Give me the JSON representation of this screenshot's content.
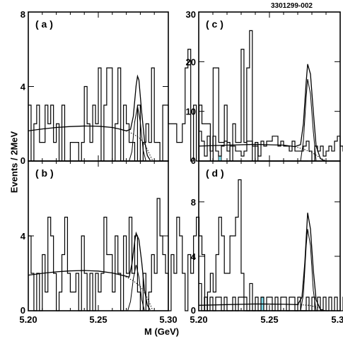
{
  "figure_id": "3301299-002",
  "ylabel": "Events / 2MeV",
  "xlabel": "M (GeV)",
  "colors": {
    "signal_fill": "#80e0f0",
    "line": "#000000",
    "background": "#ffffff"
  },
  "chart_data": [
    {
      "type": "histogram",
      "panel_label": "( a )",
      "xlim": [
        5.2,
        5.3
      ],
      "ylim": [
        0,
        8
      ],
      "y_ticks": [
        "0",
        "4",
        "8"
      ],
      "x_ticks": [],
      "bin_edges_start": 5.2,
      "bin_width": 0.002,
      "counts": [
        3,
        0,
        2,
        3,
        1,
        1,
        3,
        2,
        3,
        1,
        2,
        0,
        3,
        0,
        0,
        1,
        1,
        1,
        0,
        1,
        4,
        2,
        1,
        3,
        2,
        5,
        0,
        3,
        5,
        5,
        0,
        2,
        5,
        0,
        3,
        2,
        1,
        1,
        0,
        3,
        0,
        1,
        2,
        1,
        5,
        1,
        1,
        0,
        3,
        3,
        2,
        2,
        2,
        1,
        1,
        2,
        5,
        6,
        0,
        3,
        0,
        3,
        2,
        2,
        2,
        0,
        5,
        5,
        1,
        1,
        3,
        1,
        0,
        2,
        1,
        1,
        6,
        1,
        5,
        7,
        0,
        1,
        0,
        0,
        0,
        0,
        0,
        0,
        0,
        0,
        0,
        0,
        0,
        0,
        0,
        0,
        0,
        0,
        0,
        0
      ],
      "shaded_counts": [],
      "fit_background_total": [
        [
          5.2,
          1.62
        ],
        [
          5.21,
          1.72
        ],
        [
          5.22,
          1.8
        ],
        [
          5.23,
          1.85
        ],
        [
          5.24,
          1.88
        ],
        [
          5.25,
          1.87
        ],
        [
          5.26,
          1.8
        ],
        [
          5.265,
          1.72
        ],
        [
          5.27,
          1.62
        ],
        [
          5.273,
          1.7
        ],
        [
          5.275,
          2.4
        ],
        [
          5.277,
          4.05
        ],
        [
          5.278,
          4.55
        ],
        [
          5.279,
          4.35
        ],
        [
          5.281,
          2.6
        ],
        [
          5.283,
          1.1
        ],
        [
          5.285,
          0.3
        ],
        [
          5.287,
          0.05
        ]
      ],
      "fit_background_dotted": [
        [
          5.27,
          1.62
        ],
        [
          5.275,
          1.45
        ],
        [
          5.28,
          1.2
        ],
        [
          5.284,
          0.8
        ],
        [
          5.287,
          0.3
        ],
        [
          5.289,
          0.0
        ]
      ],
      "fit_signal": [
        [
          5.272,
          0.0
        ],
        [
          5.274,
          0.5
        ],
        [
          5.276,
          2.1
        ],
        [
          5.278,
          2.95
        ],
        [
          5.28,
          2.1
        ],
        [
          5.282,
          0.6
        ],
        [
          5.284,
          0.0
        ]
      ]
    },
    {
      "type": "histogram",
      "panel_label": "( b )",
      "xlim": [
        5.2,
        5.3
      ],
      "ylim": [
        0,
        8
      ],
      "y_ticks": [
        "0",
        "4"
      ],
      "x_ticks": [
        "5.20",
        "5.25",
        "5.30"
      ],
      "bin_edges_start": 5.2,
      "bin_width": 0.002,
      "counts": [
        4,
        2,
        0,
        2,
        0,
        3,
        1,
        5,
        4,
        2,
        0,
        1,
        3,
        5,
        2,
        1,
        1,
        2,
        0,
        4,
        2,
        0,
        2,
        0,
        2,
        1,
        2,
        5,
        3,
        3,
        1,
        4,
        2,
        0,
        4,
        2,
        5,
        2,
        4,
        1,
        0,
        2,
        0,
        1,
        3,
        2,
        6,
        4,
        3,
        2,
        0,
        3,
        2,
        5,
        4,
        2,
        0,
        3,
        2,
        4,
        5,
        4,
        3,
        0,
        1,
        2,
        1,
        3,
        5,
        4,
        2,
        2,
        4,
        4,
        5,
        7,
        2,
        0,
        0,
        0,
        0,
        0,
        0,
        0,
        0,
        0,
        0,
        0,
        0,
        0,
        0,
        0,
        0,
        0,
        0,
        0,
        0,
        0,
        0,
        0
      ],
      "shaded_counts": [],
      "fit_background_total": [
        [
          5.2,
          1.9
        ],
        [
          5.21,
          2.0
        ],
        [
          5.22,
          2.08
        ],
        [
          5.23,
          2.13
        ],
        [
          5.24,
          2.15
        ],
        [
          5.25,
          2.12
        ],
        [
          5.26,
          2.02
        ],
        [
          5.268,
          1.88
        ],
        [
          5.272,
          1.8
        ],
        [
          5.274,
          2.5
        ],
        [
          5.276,
          3.7
        ],
        [
          5.277,
          4.15
        ],
        [
          5.279,
          3.8
        ],
        [
          5.281,
          2.6
        ],
        [
          5.283,
          1.1
        ],
        [
          5.285,
          0.3
        ],
        [
          5.287,
          0.05
        ]
      ],
      "fit_background_dotted": [
        [
          5.268,
          1.88
        ],
        [
          5.275,
          1.6
        ],
        [
          5.28,
          1.3
        ],
        [
          5.284,
          0.85
        ],
        [
          5.287,
          0.35
        ],
        [
          5.289,
          0.0
        ]
      ],
      "fit_signal": [
        [
          5.271,
          0.0
        ],
        [
          5.273,
          0.5
        ],
        [
          5.275,
          1.7
        ],
        [
          5.277,
          2.45
        ],
        [
          5.279,
          1.8
        ],
        [
          5.281,
          0.6
        ],
        [
          5.283,
          0.0
        ]
      ]
    },
    {
      "type": "histogram",
      "panel_label": "( c )",
      "xlim": [
        5.2,
        5.3
      ],
      "ylim": [
        0,
        30
      ],
      "y_ticks": [
        "0",
        "10",
        "20",
        "30"
      ],
      "x_ticks": [],
      "bin_edges_start": 5.2,
      "bin_width": 0.002,
      "counts": [
        6,
        4,
        1,
        5,
        2,
        5,
        2,
        1,
        3,
        4,
        2,
        3,
        3,
        2,
        2,
        1,
        2,
        4,
        4,
        3,
        3,
        1,
        4,
        3,
        4,
        4,
        5,
        5,
        3,
        4,
        3,
        3,
        2,
        4,
        2,
        2,
        2,
        3,
        4,
        2,
        0,
        3,
        2,
        3,
        1,
        2,
        3,
        2,
        4,
        5,
        3,
        2,
        2,
        3,
        1,
        2,
        0,
        1,
        2,
        3,
        2,
        2,
        4,
        3,
        2,
        1,
        2,
        4,
        3,
        1,
        2,
        3,
        4,
        2,
        2,
        4,
        26,
        23,
        12,
        8,
        3,
        2,
        0,
        0,
        0,
        0,
        0,
        0,
        0,
        0,
        0,
        0,
        0,
        0,
        0,
        0,
        0,
        0,
        0,
        0
      ],
      "shaded_counts": [
        0,
        0,
        0,
        0,
        0,
        0,
        0,
        1,
        0,
        0,
        0,
        0,
        0,
        0,
        0,
        0,
        0,
        0,
        0,
        0,
        0,
        0,
        0,
        0,
        0,
        0,
        0,
        0,
        0,
        0,
        0,
        0,
        0,
        0,
        0,
        0,
        0,
        0,
        0,
        0,
        0,
        0,
        0,
        0,
        0,
        0,
        0,
        0,
        0,
        0,
        0,
        0,
        0,
        0,
        0,
        0,
        0,
        0,
        0,
        0,
        0,
        0,
        0,
        0,
        0,
        0,
        0,
        1,
        0,
        0,
        0,
        1,
        1,
        1,
        2,
        9,
        11,
        2,
        0,
        0,
        0,
        0,
        0,
        0,
        0,
        0,
        0,
        0,
        0,
        0,
        0,
        0,
        0,
        0,
        0,
        0,
        0,
        0,
        0,
        0
      ],
      "fit_background_total": [
        [
          5.2,
          3.0
        ],
        [
          5.22,
          3.2
        ],
        [
          5.24,
          3.35
        ],
        [
          5.26,
          3.2
        ],
        [
          5.268,
          2.9
        ],
        [
          5.272,
          3.3
        ],
        [
          5.274,
          7.5
        ],
        [
          5.276,
          16.0
        ],
        [
          5.277,
          19.5
        ],
        [
          5.279,
          17.5
        ],
        [
          5.281,
          10.0
        ],
        [
          5.283,
          3.0
        ],
        [
          5.286,
          0.5
        ],
        [
          5.289,
          0.0
        ]
      ],
      "fit_background_dotted": [
        [
          5.268,
          2.9
        ],
        [
          5.275,
          2.3
        ],
        [
          5.28,
          1.7
        ],
        [
          5.284,
          1.0
        ],
        [
          5.288,
          0.3
        ],
        [
          5.29,
          0.0
        ]
      ],
      "fit_signal": [
        [
          5.272,
          0.0
        ],
        [
          5.274,
          4.0
        ],
        [
          5.276,
          13.0
        ],
        [
          5.277,
          16.5
        ],
        [
          5.279,
          13.5
        ],
        [
          5.281,
          6.0
        ],
        [
          5.283,
          0.0
        ]
      ]
    },
    {
      "type": "histogram",
      "panel_label": "( d )",
      "xlim": [
        5.2,
        5.3
      ],
      "ylim": [
        0,
        11
      ],
      "y_ticks": [
        "0",
        "4",
        "8"
      ],
      "x_ticks": [
        "5.20",
        "5.25",
        "5.30"
      ],
      "bin_edges_start": 5.2,
      "bin_width": 0.002,
      "counts": [
        2,
        0,
        1,
        0,
        1,
        0,
        1,
        1,
        0,
        1,
        0,
        0,
        1,
        0,
        1,
        1,
        1,
        0,
        2,
        0,
        1,
        0,
        1,
        0,
        1,
        1,
        0,
        1,
        0,
        1,
        1,
        0,
        1,
        1,
        0,
        1,
        0,
        0,
        1,
        0,
        1,
        0,
        1,
        0,
        1,
        0,
        1,
        0,
        1,
        0,
        0,
        1,
        0,
        0,
        0,
        1,
        0,
        0,
        0,
        0,
        0,
        1,
        1,
        0,
        0,
        0,
        1,
        0,
        1,
        1,
        0,
        1,
        2,
        1,
        1,
        0,
        10,
        8,
        1,
        0,
        0,
        0,
        0,
        0,
        0,
        0,
        0,
        0,
        0,
        0,
        0,
        0,
        0,
        0,
        0,
        0,
        0,
        0,
        0,
        0
      ],
      "shaded_counts": [
        0,
        0,
        0,
        0,
        0,
        0,
        0,
        0,
        0,
        0,
        0,
        0,
        0,
        0,
        0,
        0,
        0,
        0,
        0,
        0,
        0,
        0,
        1,
        0,
        0,
        0,
        0,
        0,
        0,
        0,
        0,
        0,
        0,
        0,
        0,
        0,
        0,
        0,
        0,
        0,
        0,
        0,
        0,
        0,
        0,
        0,
        0,
        0,
        0,
        0,
        0,
        0,
        0,
        0,
        0,
        0,
        0,
        0,
        0,
        0,
        0,
        0,
        0,
        0,
        0,
        0,
        0,
        0,
        0,
        0,
        0,
        0,
        1,
        1,
        0,
        0,
        4,
        2,
        0,
        0,
        0,
        0,
        0,
        0,
        0,
        0,
        0,
        0,
        0,
        0,
        0,
        0,
        0,
        0,
        0,
        0,
        0,
        0,
        0,
        0
      ],
      "fit_background_total": [
        [
          5.2,
          0.4
        ],
        [
          5.22,
          0.45
        ],
        [
          5.24,
          0.5
        ],
        [
          5.26,
          0.48
        ],
        [
          5.27,
          0.45
        ],
        [
          5.273,
          1.0
        ],
        [
          5.275,
          3.5
        ],
        [
          5.277,
          7.2
        ],
        [
          5.279,
          6.0
        ],
        [
          5.281,
          3.0
        ],
        [
          5.283,
          0.8
        ],
        [
          5.286,
          0.1
        ],
        [
          5.289,
          0.0
        ]
      ],
      "fit_background_dotted": [
        [
          5.27,
          0.45
        ],
        [
          5.278,
          0.4
        ],
        [
          5.284,
          0.25
        ],
        [
          5.288,
          0.05
        ],
        [
          5.29,
          0.0
        ]
      ],
      "fit_signal": [
        [
          5.272,
          0.0
        ],
        [
          5.274,
          1.2
        ],
        [
          5.276,
          4.8
        ],
        [
          5.277,
          6.0
        ],
        [
          5.279,
          4.8
        ],
        [
          5.281,
          1.5
        ],
        [
          5.283,
          0.0
        ]
      ]
    }
  ]
}
